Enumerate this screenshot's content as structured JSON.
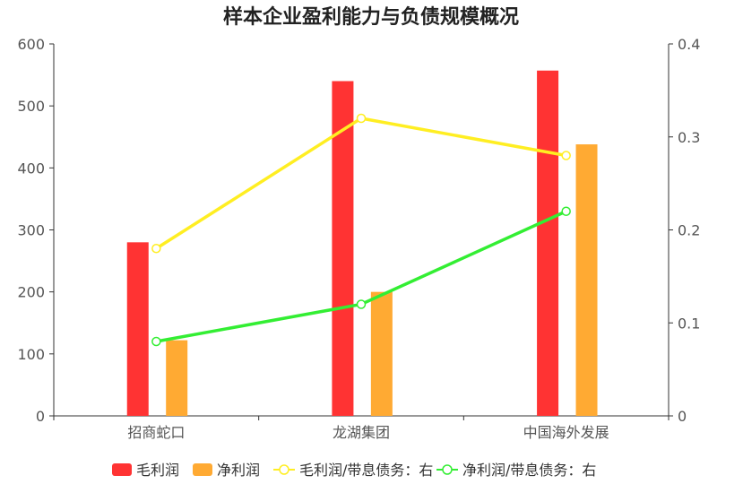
{
  "chart_data": {
    "type": "bar",
    "title": "样本企业盈利能力与负债规模概况",
    "categories": [
      "招商蛇口",
      "龙湖集团",
      "中国海外发展"
    ],
    "left_axis": {
      "ylim": [
        0,
        600
      ],
      "ticks": [
        "0",
        "100",
        "200",
        "300",
        "400",
        "500",
        "600"
      ]
    },
    "right_axis": {
      "ylim": [
        0,
        0.4
      ],
      "ticks": [
        "0",
        "0.1",
        "0.2",
        "0.3",
        "0.4"
      ]
    },
    "bar_series": [
      {
        "name": "毛利润",
        "values": [
          280,
          540,
          557
        ],
        "color": "#ff3333"
      },
      {
        "name": "净利润",
        "values": [
          122,
          200,
          438
        ],
        "color": "#ffaa33"
      }
    ],
    "line_series": [
      {
        "name": "毛利润/带息债务：右",
        "values": [
          0.18,
          0.32,
          0.28
        ],
        "color": "#ffee22",
        "axis": "right"
      },
      {
        "name": "净利润/带息债务：右",
        "values": [
          0.08,
          0.12,
          0.22
        ],
        "color": "#33ee33",
        "axis": "right"
      }
    ],
    "legend_position": "bottom",
    "grid": false
  }
}
